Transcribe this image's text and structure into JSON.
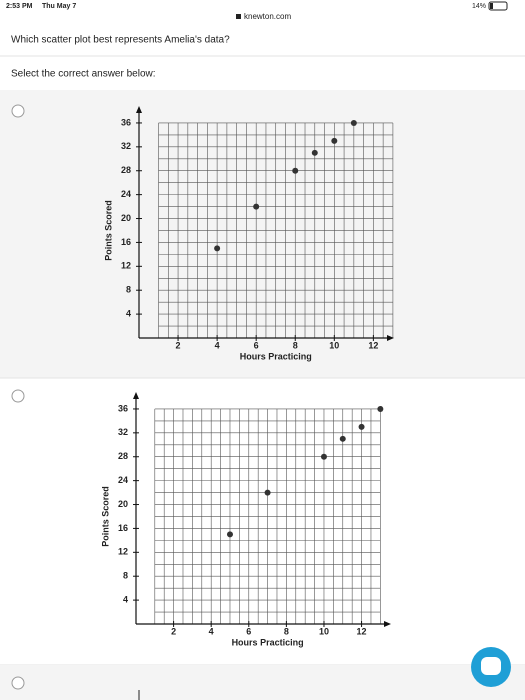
{
  "status_bar": {
    "time": "2:53 PM",
    "date": "Thu May 7",
    "battery": "14%"
  },
  "url": "knewton.com",
  "question": "Which scatter plot best represents Amelia's data?",
  "instruction": "Select the correct answer below:",
  "chart_data": [
    {
      "type": "scatter",
      "xlabel": "Hours Practicing",
      "ylabel": "Points Scored",
      "x": [
        4,
        6,
        8,
        9,
        10,
        11
      ],
      "values": [
        15,
        22,
        28,
        31,
        33,
        36
      ],
      "color": "#333333",
      "xlim": [
        0,
        12.8
      ],
      "ylim": [
        0,
        38
      ],
      "xticks": [
        2,
        4,
        6,
        8,
        10,
        12
      ],
      "yticks": [
        4,
        8,
        12,
        16,
        20,
        24,
        28,
        32,
        36
      ],
      "grid": true
    },
    {
      "type": "scatter",
      "xlabel": "Hours Practicing",
      "ylabel": "Points Scored",
      "x": [
        5,
        7,
        10,
        11,
        12,
        13
      ],
      "values": [
        15,
        22,
        28,
        31,
        33,
        36
      ],
      "color": "#333333",
      "xlim": [
        0,
        13.3
      ],
      "ylim": [
        0,
        38
      ],
      "xticks": [
        2,
        4,
        6,
        8,
        10,
        12
      ],
      "yticks": [
        4,
        8,
        12,
        16,
        20,
        24,
        28,
        32,
        36
      ],
      "grid": true
    }
  ]
}
